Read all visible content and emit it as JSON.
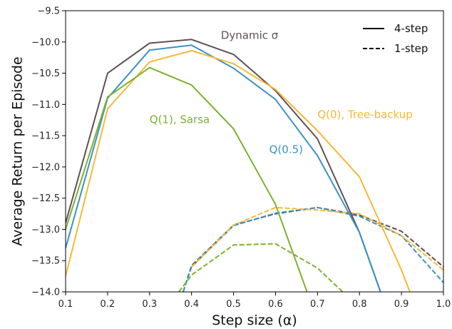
{
  "chart_data": {
    "type": "line",
    "xlabel": "Step size (α)",
    "ylabel": "Average Return per Episode",
    "xlim": [
      0.1,
      1.0
    ],
    "ylim": [
      -14.0,
      -9.5
    ],
    "xticks": [
      "0.1",
      "0.2",
      "0.3",
      "0.4",
      "0.5",
      "0.6",
      "0.7",
      "0.8",
      "0.9",
      "1.0"
    ],
    "yticks": [
      "−9.5",
      "−10.0",
      "−10.5",
      "−11.0",
      "−11.5",
      "−12.0",
      "−12.5",
      "−13.0",
      "−13.5",
      "−14.0"
    ],
    "grid": false,
    "legend_position": "top-right",
    "legend": [
      {
        "label": "4-step",
        "style": "solid"
      },
      {
        "label": "1-step",
        "style": "dashed"
      }
    ],
    "series": [
      {
        "name": "Dynamic σ",
        "color": "#5f5056",
        "style": "solid",
        "x": [
          0.1,
          0.2,
          0.3,
          0.4,
          0.5,
          0.6,
          0.7,
          0.8,
          0.85
        ],
        "y": [
          -12.9,
          -10.5,
          -10.02,
          -9.96,
          -10.2,
          -10.78,
          -11.55,
          -13.05,
          -14.0
        ]
      },
      {
        "name": "Q(0.5)",
        "color": "#3a93c3",
        "style": "solid",
        "x": [
          0.1,
          0.2,
          0.3,
          0.4,
          0.5,
          0.6,
          0.7,
          0.8,
          0.85
        ],
        "y": [
          -13.3,
          -10.9,
          -10.13,
          -10.05,
          -10.42,
          -10.92,
          -11.82,
          -13.05,
          -14.0
        ]
      },
      {
        "name": "Q(0), Tree-backup",
        "color": "#f6b934",
        "style": "solid",
        "x": [
          0.1,
          0.2,
          0.3,
          0.4,
          0.5,
          0.6,
          0.7,
          0.8,
          0.9,
          0.92
        ],
        "y": [
          -13.75,
          -11.07,
          -10.32,
          -10.14,
          -10.35,
          -10.76,
          -11.42,
          -12.16,
          -13.65,
          -14.0
        ]
      },
      {
        "name": "Q(1), Sarsa",
        "color": "#7db22f",
        "style": "solid",
        "x": [
          0.1,
          0.2,
          0.3,
          0.4,
          0.5,
          0.6,
          0.675
        ],
        "y": [
          -13.0,
          -10.88,
          -10.41,
          -10.69,
          -11.39,
          -12.6,
          -14.0
        ]
      },
      {
        "name": "Dynamic σ",
        "color": "#5f5056",
        "style": "dashed",
        "x": [
          0.38,
          0.4,
          0.5,
          0.6,
          0.7,
          0.8,
          0.9,
          1.0
        ],
        "y": [
          -14.0,
          -13.58,
          -12.93,
          -12.75,
          -12.65,
          -12.77,
          -13.03,
          -13.6
        ]
      },
      {
        "name": "Q(0.5)",
        "color": "#3a93c3",
        "style": "dashed",
        "x": [
          0.38,
          0.4,
          0.5,
          0.6,
          0.7,
          0.8,
          0.9,
          1.0
        ],
        "y": [
          -14.0,
          -13.6,
          -12.94,
          -12.74,
          -12.65,
          -12.79,
          -13.1,
          -13.85
        ]
      },
      {
        "name": "Q(0), Tree-backup",
        "color": "#f6b934",
        "style": "dashed",
        "x": [
          0.4,
          0.5,
          0.6,
          0.7,
          0.8,
          0.9,
          1.0
        ],
        "y": [
          -13.6,
          -12.93,
          -12.65,
          -12.69,
          -12.75,
          -13.1,
          -13.65
        ]
      },
      {
        "name": "Q(1), Sarsa",
        "color": "#7db22f",
        "style": "dashed",
        "x": [
          0.37,
          0.4,
          0.5,
          0.6,
          0.7,
          0.76
        ],
        "y": [
          -14.0,
          -13.73,
          -13.25,
          -13.23,
          -13.62,
          -14.0
        ]
      }
    ],
    "annotations": [
      {
        "text": "Dynamic σ",
        "color": "#5f5056",
        "x": 0.47,
        "y": -9.95,
        "anchor": "start"
      },
      {
        "text": "Q(1), Sarsa",
        "color": "#7db22f",
        "x": 0.3,
        "y": -11.3,
        "anchor": "start"
      },
      {
        "text": "Q(0.5)",
        "color": "#3a93c3",
        "x": 0.585,
        "y": -11.78,
        "anchor": "start"
      },
      {
        "text": "Q(0), Tree-backup",
        "color": "#f6b934",
        "x": 0.7,
        "y": -11.22,
        "anchor": "start"
      }
    ]
  }
}
